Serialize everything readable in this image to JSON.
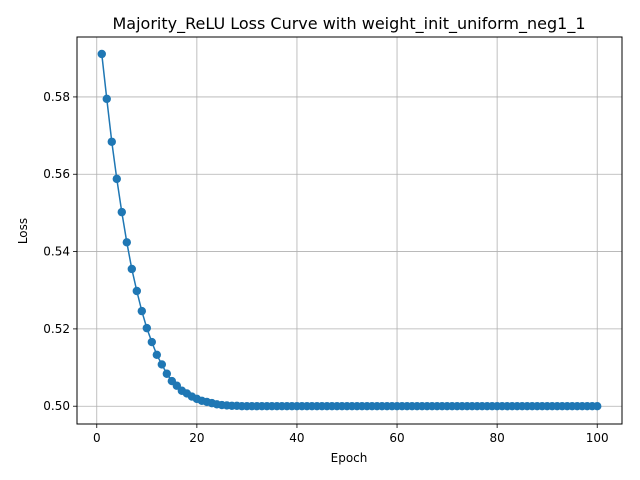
{
  "chart_data": {
    "type": "line",
    "title": "Majority_ReLU Loss Curve with weight_init_uniform_neg1_1",
    "xlabel": "Epoch",
    "ylabel": "Loss",
    "xlim": [
      -3.95,
      104.95
    ],
    "ylim": [
      0.4954,
      0.5955
    ],
    "x_ticks": [
      0,
      20,
      40,
      60,
      80,
      100
    ],
    "y_ticks": [
      0.5,
      0.52,
      0.54,
      0.56,
      0.58
    ],
    "x_tick_labels": [
      "0",
      "20",
      "40",
      "60",
      "80",
      "100"
    ],
    "y_tick_labels": [
      "0.50",
      "0.52",
      "0.54",
      "0.56",
      "0.58"
    ],
    "grid": true,
    "series": [
      {
        "color": "#1f77b4",
        "marker": "circle",
        "x": [
          1,
          2,
          3,
          4,
          5,
          6,
          7,
          8,
          9,
          10,
          11,
          12,
          13,
          14,
          15,
          16,
          17,
          18,
          19,
          20,
          21,
          22,
          23,
          24,
          25,
          26,
          27,
          28,
          29,
          30,
          31,
          32,
          33,
          34,
          35,
          36,
          37,
          38,
          39,
          40,
          41,
          42,
          43,
          44,
          45,
          46,
          47,
          48,
          49,
          50,
          51,
          52,
          53,
          54,
          55,
          56,
          57,
          58,
          59,
          60,
          61,
          62,
          63,
          64,
          65,
          66,
          67,
          68,
          69,
          70,
          71,
          72,
          73,
          74,
          75,
          76,
          77,
          78,
          79,
          80,
          81,
          82,
          83,
          84,
          85,
          86,
          87,
          88,
          89,
          90,
          91,
          92,
          93,
          94,
          95,
          96,
          97,
          98,
          99,
          100
        ],
        "y": [
          0.5911,
          0.5795,
          0.5684,
          0.5588,
          0.5502,
          0.5424,
          0.5355,
          0.5298,
          0.5246,
          0.5202,
          0.5166,
          0.5133,
          0.5108,
          0.5084,
          0.5065,
          0.5053,
          0.504,
          0.5033,
          0.5025,
          0.5019,
          0.5014,
          0.5011,
          0.5008,
          0.5005,
          0.5003,
          0.5002,
          0.5001,
          0.5001,
          0.5,
          0.5,
          0.5,
          0.5,
          0.5,
          0.5,
          0.5,
          0.5,
          0.5,
          0.5,
          0.5,
          0.5,
          0.5,
          0.5,
          0.5,
          0.5,
          0.5,
          0.5,
          0.5,
          0.5,
          0.5,
          0.5,
          0.5,
          0.5,
          0.5,
          0.5,
          0.5,
          0.5,
          0.5,
          0.5,
          0.5,
          0.5,
          0.5,
          0.5,
          0.5,
          0.5,
          0.5,
          0.5,
          0.5,
          0.5,
          0.5,
          0.5,
          0.5,
          0.5,
          0.5,
          0.5,
          0.5,
          0.5,
          0.5,
          0.5,
          0.5,
          0.5,
          0.5,
          0.5,
          0.5,
          0.5,
          0.5,
          0.5,
          0.5,
          0.5,
          0.5,
          0.5,
          0.5,
          0.5,
          0.5,
          0.5,
          0.5,
          0.5,
          0.5,
          0.5,
          0.5,
          0.5
        ]
      }
    ]
  },
  "colors": {
    "grid": "#b0b0b0",
    "axes": "#000000",
    "series": "#1f77b4"
  }
}
